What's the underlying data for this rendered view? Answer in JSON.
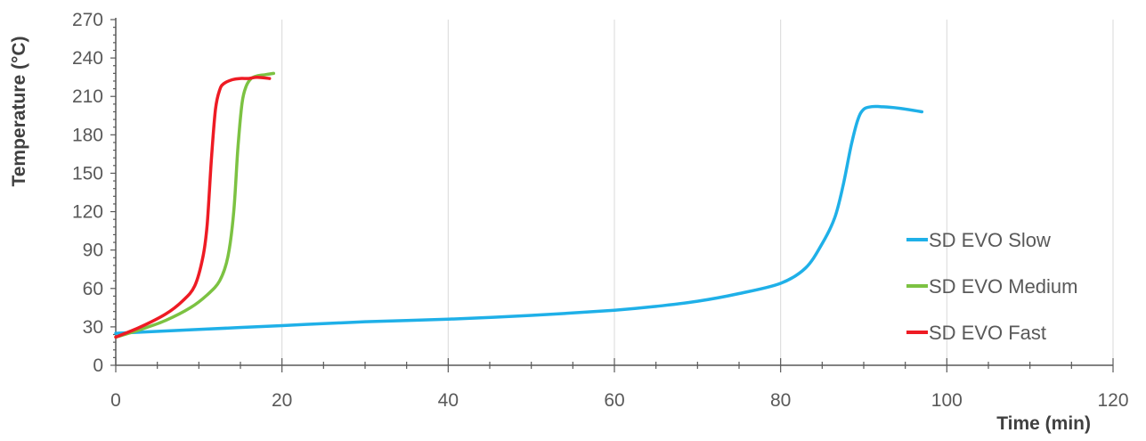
{
  "chart_data": {
    "type": "line",
    "xlabel": "Time (min)",
    "ylabel": "Temperature (°C)",
    "xlim": [
      0,
      120
    ],
    "ylim": [
      0,
      270
    ],
    "xticks": [
      0,
      20,
      40,
      60,
      80,
      100,
      120
    ],
    "yticks": [
      0,
      30,
      60,
      90,
      120,
      150,
      180,
      210,
      240,
      270
    ],
    "grid": true,
    "legend_position": "right",
    "series": [
      {
        "name": "SD EVO Slow",
        "color": "#1fb0e8",
        "x": [
          0,
          10,
          20,
          30,
          40,
          50,
          60,
          65,
          70,
          75,
          80,
          83,
          85,
          86.5,
          87.5,
          88.5,
          89.3,
          90,
          91,
          92,
          94,
          97
        ],
        "y": [
          25,
          28,
          31,
          34,
          36,
          39,
          43,
          46,
          50,
          56,
          64,
          76,
          95,
          115,
          140,
          172,
          192,
          200,
          202,
          202,
          201,
          198
        ]
      },
      {
        "name": "SD EVO Medium",
        "color": "#7cc242",
        "x": [
          0,
          3,
          6,
          9,
          11,
          12.5,
          13.5,
          14.2,
          14.7,
          15.2,
          15.7,
          16.3,
          17,
          18,
          19
        ],
        "y": [
          22,
          28,
          35,
          45,
          55,
          66,
          85,
          120,
          170,
          205,
          218,
          224,
          226,
          227,
          228
        ]
      },
      {
        "name": "SD EVO Fast",
        "color": "#ee1b24",
        "x": [
          0,
          3,
          6,
          8,
          9.5,
          10.5,
          11,
          11.5,
          12,
          12.5,
          13,
          14,
          15,
          16,
          17,
          18.5
        ],
        "y": [
          22,
          30,
          40,
          50,
          62,
          85,
          110,
          160,
          200,
          215,
          220,
          223,
          224,
          224,
          225,
          224
        ]
      }
    ]
  }
}
